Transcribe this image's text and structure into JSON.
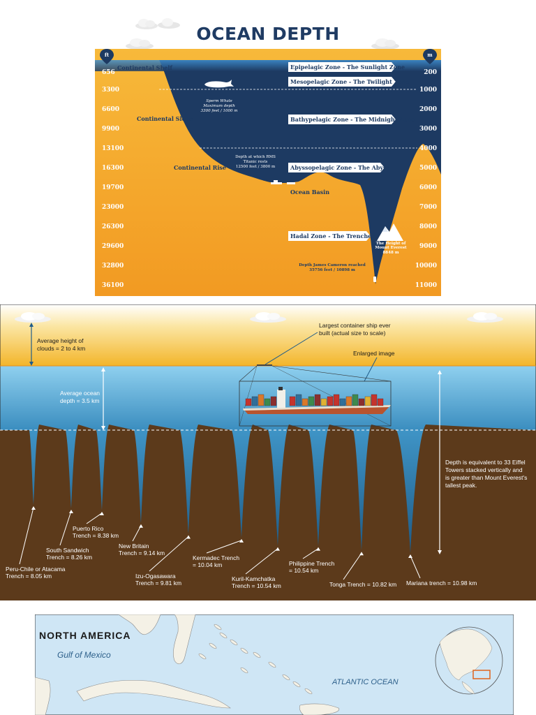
{
  "title": "OCEAN DEPTH",
  "panel1": {
    "ft_unit": "ft",
    "m_unit": "m",
    "ft_ticks": [
      "656",
      "3300",
      "6600",
      "9900",
      "13100",
      "16300",
      "19700",
      "23000",
      "26300",
      "29600",
      "32800",
      "36100"
    ],
    "m_ticks": [
      "200",
      "1000",
      "2000",
      "3000",
      "4000",
      "5000",
      "6000",
      "7000",
      "8000",
      "9000",
      "10000",
      "11000"
    ],
    "zones": [
      "Epipelagic Zone - The Sunlight Zone",
      "Mesopelagic Zone - The Twilight Zone",
      "Bathypelagic Zone - The Midnight Zone",
      "Abyssopelagic Zone - The Abyss",
      "Hadal Zone - The Trenches"
    ],
    "features": {
      "shelf": "Continental Shelf",
      "slope": "Continental Slope",
      "rise": "Continental Rise",
      "basin": "Ocean Basin"
    },
    "whale_note": [
      "Sperm Whale",
      "Maximum depth",
      "3300 feet / 1000 m"
    ],
    "titanic_note": [
      "Depth at which RMS",
      "Titanic rests",
      "12500 feet / 3800 m"
    ],
    "everest_note": [
      "The Height of",
      "Mount Everest",
      "8848 m"
    ],
    "cameron_note": [
      "Depth James Cameron reached",
      "35756 feet / 10898 m"
    ]
  },
  "panel2": {
    "clouds_note": [
      "Average height of",
      "clouds = 2 to 4 km"
    ],
    "ocean_note": [
      "Average ocean",
      "depth = 3.5 km"
    ],
    "ship_note": [
      "Largest container ship ever",
      "built (actual size to scale)"
    ],
    "enlarged_note": "Enlarged image",
    "everest_compare": [
      "Depth is equivalent to 33 Eiffel",
      "Towers stacked vertically and",
      "is greater than Mount Everest's",
      "tallest peak."
    ],
    "trenches": [
      {
        "lines": [
          "Peru-Chile or Atacama",
          "Trench = 8.05 km"
        ]
      },
      {
        "lines": [
          "South Sandwich",
          "Trench = 8.26 km"
        ]
      },
      {
        "lines": [
          "Puerto Rico",
          "Trench = 8.38 km"
        ]
      },
      {
        "lines": [
          "New Britain",
          "Trench = 9.14 km"
        ]
      },
      {
        "lines": [
          "Izu-Ogasawara",
          "Trench = 9.81 km"
        ]
      },
      {
        "lines": [
          "Kermadec Trench",
          "= 10.04 km"
        ]
      },
      {
        "lines": [
          "Kuril-Kamchatka",
          "Trench = 10.54 km"
        ]
      },
      {
        "lines": [
          "Philippine Trench",
          "= 10.54 km"
        ]
      },
      {
        "lines": [
          "Tonga Trench = 10.82 km"
        ]
      },
      {
        "lines": [
          "Mariana trench = 10.98 km"
        ]
      }
    ]
  },
  "panel3": {
    "region": "NORTH AMERICA",
    "gulf": "Gulf of Mexico",
    "ocean": "ATLANTIC OCEAN"
  },
  "colors": {
    "navy": "#1d3a62",
    "orange": "#f2a028",
    "sky": "#f5b52b",
    "sea": "#4da3d4",
    "earth": "#5c3a1b"
  }
}
